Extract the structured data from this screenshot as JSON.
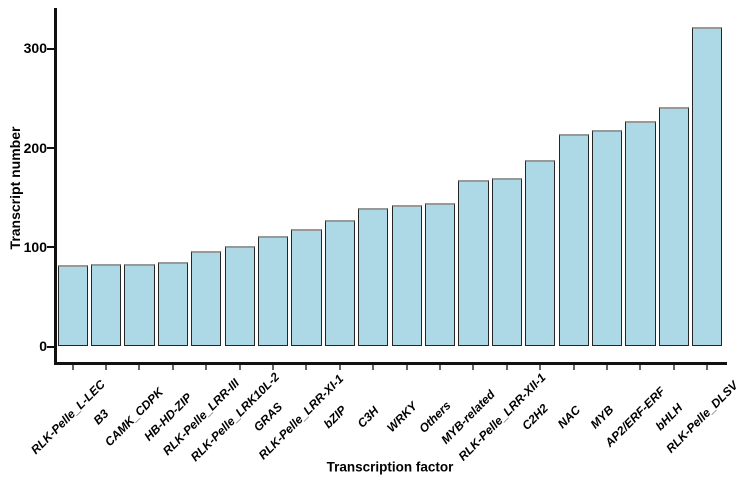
{
  "chart_data": {
    "type": "bar",
    "title": "",
    "xlabel": "Transcription factor",
    "ylabel": "Transcript number",
    "categories": [
      "RLK-Pelle_L-LEC",
      "B3",
      "CAMK_CDPK",
      "HB-HD-ZIP",
      "RLK-Pelle_LRR-III",
      "RLK-Pelle_LRK10L-2",
      "GRAS",
      "RLK-Pelle_LRR-XI-1",
      "bZIP",
      "C3H",
      "WRKY",
      "Others",
      "MYB-related",
      "RLK-Pelle_LRR-XII-1",
      "C2H2",
      "NAC",
      "MYB",
      "AP2/ERF-ERF",
      "bHLH",
      "RLK-Pelle_DLSV"
    ],
    "values": [
      82,
      83,
      83,
      85,
      96,
      101,
      111,
      118,
      128,
      140,
      143,
      145,
      168,
      170,
      188,
      214,
      218,
      227,
      241,
      322
    ],
    "yticks": [
      0,
      100,
      200,
      300
    ],
    "ylim": [
      0,
      340
    ],
    "grid": false,
    "legend": false,
    "bar_label_style": "bold-italic-45deg",
    "colors": {
      "bar_fill": "#ADD8E6",
      "bar_edge": "#262626",
      "bar_top_edge": "#999999",
      "axis": "#111111",
      "x_tick": "#666666",
      "text": "#000000",
      "background": "#FFFFFF"
    }
  }
}
